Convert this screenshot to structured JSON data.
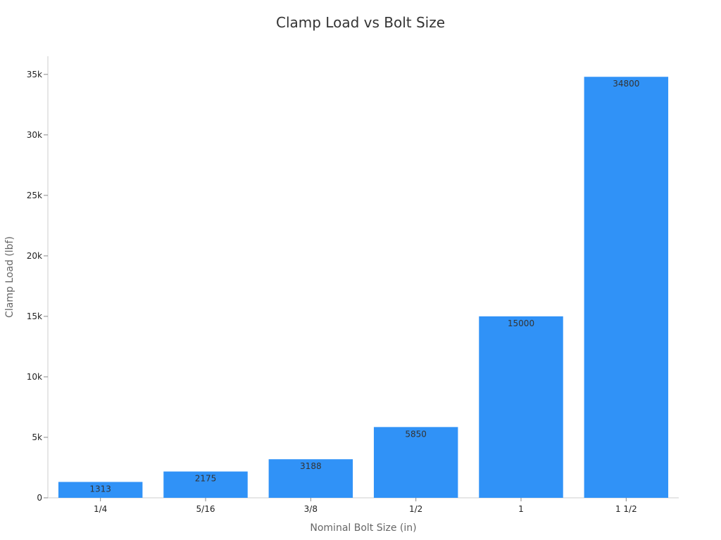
{
  "chart_data": {
    "type": "bar",
    "title": "Clamp Load vs Bolt Size",
    "xlabel": "Nominal Bolt Size (in)",
    "ylabel": "Clamp Load (lbf)",
    "categories": [
      "1/4",
      "5/16",
      "3/8",
      "1/2",
      "1",
      "1 1/2"
    ],
    "values": [
      1313,
      2175,
      3188,
      5850,
      15000,
      34800
    ],
    "ylim": [
      0,
      36500
    ],
    "yticks": [
      0,
      5000,
      10000,
      15000,
      20000,
      25000,
      30000,
      35000
    ],
    "ytick_labels": [
      "0",
      "5k",
      "10k",
      "15k",
      "20k",
      "25k",
      "30k",
      "35k"
    ],
    "bar_color": "#3092f7",
    "grid": false,
    "legend": "none"
  }
}
